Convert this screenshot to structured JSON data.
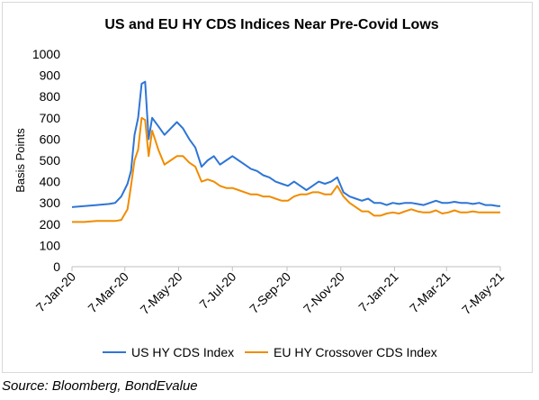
{
  "source": "Source: Bloomberg, BondEvalue",
  "chart_data": {
    "type": "line",
    "title": "US and EU HY CDS Indices Near Pre-Covid Lows",
    "xlabel": "",
    "ylabel": "Basis Points",
    "ylim": [
      0,
      1000
    ],
    "yticks": [
      0,
      100,
      200,
      300,
      400,
      500,
      600,
      700,
      800,
      900,
      1000
    ],
    "grid": false,
    "legend_position": "bottom",
    "x_ticks": [
      "7-Jan-20",
      "7-Mar-20",
      "7-May-20",
      "7-Jul-20",
      "7-Sep-20",
      "7-Nov-20",
      "7-Jan-21",
      "7-Mar-21",
      "7-May-21"
    ],
    "x": [
      "7-Jan-20",
      "21-Jan-20",
      "4-Feb-20",
      "18-Feb-20",
      "25-Feb-20",
      "3-Mar-20",
      "10-Mar-20",
      "14-Mar-20",
      "18-Mar-20",
      "22-Mar-20",
      "26-Mar-20",
      "30-Mar-20",
      "3-Apr-20",
      "7-Apr-20",
      "14-Apr-20",
      "21-Apr-20",
      "28-Apr-20",
      "5-May-20",
      "12-May-20",
      "19-May-20",
      "26-May-20",
      "2-Jun-20",
      "9-Jun-20",
      "16-Jun-20",
      "23-Jun-20",
      "30-Jun-20",
      "7-Jul-20",
      "14-Jul-20",
      "21-Jul-20",
      "28-Jul-20",
      "4-Aug-20",
      "11-Aug-20",
      "18-Aug-20",
      "25-Aug-20",
      "1-Sep-20",
      "8-Sep-20",
      "15-Sep-20",
      "22-Sep-20",
      "29-Sep-20",
      "6-Oct-20",
      "13-Oct-20",
      "20-Oct-20",
      "27-Oct-20",
      "3-Nov-20",
      "10-Nov-20",
      "17-Nov-20",
      "24-Nov-20",
      "1-Dec-20",
      "8-Dec-20",
      "15-Dec-20",
      "22-Dec-20",
      "29-Dec-20",
      "5-Jan-21",
      "12-Jan-21",
      "19-Jan-21",
      "26-Jan-21",
      "2-Feb-21",
      "9-Feb-21",
      "16-Feb-21",
      "23-Feb-21",
      "2-Mar-21",
      "9-Mar-21",
      "16-Mar-21",
      "23-Mar-21",
      "30-Mar-21",
      "6-Apr-21",
      "13-Apr-21",
      "20-Apr-21",
      "27-Apr-21",
      "4-May-21",
      "7-May-21"
    ],
    "series": [
      {
        "name": "US HY CDS Index",
        "color": "#2e75d6",
        "values": [
          280,
          285,
          290,
          295,
          300,
          330,
          390,
          450,
          620,
          700,
          860,
          870,
          600,
          700,
          660,
          620,
          650,
          680,
          650,
          600,
          560,
          470,
          500,
          520,
          480,
          500,
          520,
          500,
          480,
          460,
          450,
          430,
          420,
          400,
          390,
          380,
          400,
          380,
          360,
          380,
          400,
          390,
          400,
          420,
          350,
          330,
          320,
          310,
          320,
          300,
          300,
          290,
          300,
          295,
          300,
          300,
          295,
          290,
          300,
          310,
          300,
          300,
          305,
          300,
          300,
          295,
          300,
          290,
          290,
          285,
          285
        ]
      },
      {
        "name": "EU HY Crossover CDS Index",
        "color": "#f08c00",
        "values": [
          210,
          210,
          215,
          215,
          215,
          220,
          270,
          380,
          500,
          550,
          700,
          690,
          520,
          640,
          550,
          480,
          500,
          520,
          520,
          490,
          470,
          400,
          410,
          400,
          380,
          370,
          370,
          360,
          350,
          340,
          340,
          330,
          330,
          320,
          310,
          310,
          330,
          340,
          340,
          350,
          350,
          340,
          340,
          380,
          330,
          300,
          280,
          260,
          260,
          240,
          240,
          250,
          255,
          250,
          260,
          270,
          260,
          255,
          255,
          265,
          250,
          255,
          265,
          255,
          255,
          260,
          255,
          255,
          255,
          255,
          255
        ]
      }
    ]
  }
}
